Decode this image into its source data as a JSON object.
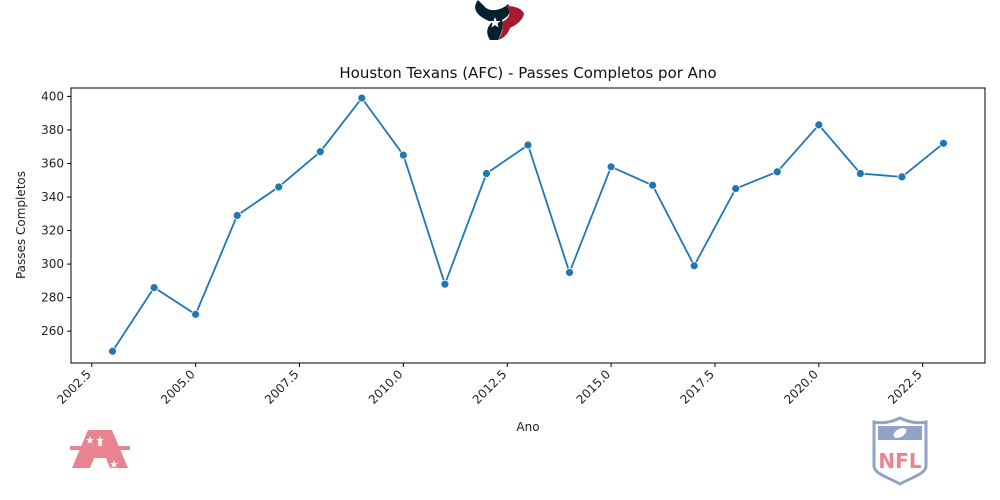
{
  "chart_data": {
    "type": "line",
    "title": "Houston Texans (AFC) - Passes Completos por Ano",
    "xlabel": "Ano",
    "ylabel": "Passes Completos",
    "xlim": [
      2002.0,
      2024.0
    ],
    "ylim": [
      241,
      405
    ],
    "x_ticks": [
      "2002.5",
      "2005.0",
      "2007.5",
      "2010.0",
      "2012.5",
      "2015.0",
      "2017.5",
      "2020.0",
      "2022.5"
    ],
    "y_ticks": [
      "260",
      "280",
      "300",
      "320",
      "340",
      "360",
      "380",
      "400"
    ],
    "grid": false,
    "series": [
      {
        "x": [
          2003,
          2004,
          2005,
          2006,
          2007,
          2008,
          2009,
          2010,
          2011,
          2012,
          2013,
          2014,
          2015,
          2016,
          2017,
          2018,
          2019,
          2020,
          2021,
          2022,
          2023
        ],
        "values": [
          248,
          286,
          270,
          329,
          346,
          367,
          399,
          365,
          288,
          354,
          371,
          295,
          358,
          347,
          299,
          345,
          355,
          383,
          354,
          352,
          372
        ]
      }
    ]
  },
  "colors": {
    "line": "#1f77b4",
    "team_navy": "#03202f",
    "team_red": "#a71930",
    "afc_logo": "#e8838f",
    "nfl_blue": "#8fa4c8",
    "nfl_red": "#e8838f"
  },
  "logos": {
    "team_logo": "houston-texans-logo",
    "afc_logo": "afc-logo",
    "nfl_logo": "nfl-logo"
  }
}
